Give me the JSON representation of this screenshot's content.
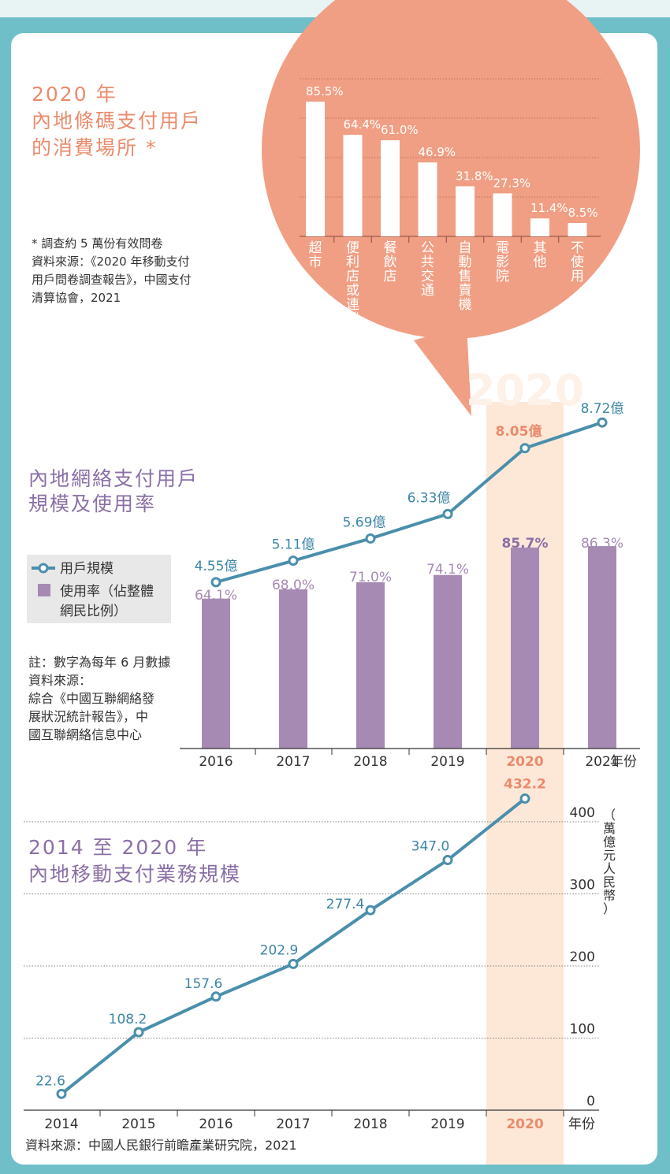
{
  "colors": {
    "frame": "#6fbfc9",
    "coral": "#f09f84",
    "orange_text": "#ea8b6c",
    "purple": "#a68ab4",
    "purple_text": "#8a6fa6",
    "teal_line": "#4a8fab",
    "teal_text": "#3d86a6",
    "highlight": "#fde8d8",
    "legend_bg": "#e8e8e8"
  },
  "section1": {
    "title_lines": [
      "2020 年",
      "內地條碼支付用戶",
      "的消費場所 *"
    ],
    "note_lines": [
      "* 調查約 5 萬份有效問卷",
      "資料來源：《2020 年移動支付",
      "用戶問卷調查報告》，中國支付",
      "清算協會，2021"
    ]
  },
  "section2": {
    "title_lines": [
      "內地網絡支付用戶",
      "規模及使用率"
    ],
    "legend_users": "用戶規模",
    "legend_rate_lines": [
      "使用率（佔整體",
      "網民比例）"
    ],
    "note_lines": [
      "註：數字為每年 6 月數據",
      "資料來源：",
      "綜合《中國互聯網絡發",
      "展狀況統計報告》，中",
      "國互聯網絡信息中心"
    ],
    "highlight_watermark": "2020",
    "x_unit": "年份"
  },
  "section3": {
    "title_lines": [
      "2014 至 2020 年",
      "內地移動支付業務規模"
    ],
    "y_unit": "（萬億元人民幣）",
    "x_unit": "年份",
    "source": "資料來源：中國人民銀行前瞻產業研究院，2021"
  },
  "chart_data": [
    {
      "type": "bar",
      "categories": [
        "超市",
        "便利店或連鎖店",
        "餐飲店",
        "公共交通",
        "自動售賣機",
        "電影院",
        "其他",
        "不使用"
      ],
      "values": [
        85.5,
        64.4,
        61.0,
        46.9,
        31.8,
        27.3,
        11.4,
        8.5
      ],
      "value_labels": [
        "85.5%",
        "64.4%",
        "61.0%",
        "46.9%",
        "31.8%",
        "27.3%",
        "11.4%",
        "8.5%"
      ],
      "title": "2020 年 內地條碼支付用戶的消費場所 *",
      "ylim": [
        0,
        100
      ],
      "grid": true
    },
    {
      "type": "bar",
      "categories": [
        "2016",
        "2017",
        "2018",
        "2019",
        "2020",
        "2021"
      ],
      "series": [
        {
          "name": "用戶規模",
          "type": "line",
          "values": [
            4.55,
            5.11,
            5.69,
            6.33,
            8.05,
            8.72
          ],
          "labels": [
            "4.55億",
            "5.11億",
            "5.69億",
            "6.33億",
            "8.05億",
            "8.72億"
          ]
        },
        {
          "name": "使用率（佔整體網民比例）",
          "type": "bar",
          "values": [
            64.1,
            68.0,
            71.0,
            74.1,
            85.7,
            86.3
          ],
          "labels": [
            "64.1%",
            "68.0%",
            "71.0%",
            "74.1%",
            "85.7%",
            "86.3%"
          ]
        }
      ],
      "title": "內地網絡支付用戶規模及使用率",
      "xlabel": "年份",
      "highlight": "2020"
    },
    {
      "type": "line",
      "x": [
        "2014",
        "2015",
        "2016",
        "2017",
        "2018",
        "2019",
        "2020"
      ],
      "values": [
        22.6,
        108.2,
        157.6,
        202.9,
        277.4,
        347.0,
        432.2
      ],
      "labels": [
        "22.6",
        "108.2",
        "157.6",
        "202.9",
        "277.4",
        "347.0",
        "432.2"
      ],
      "title": "2014 至 2020 年 內地移動支付業務規模",
      "xlabel": "年份",
      "ylabel": "（萬億元人民幣）",
      "yticks": [
        "0",
        "100",
        "200",
        "300",
        "400"
      ],
      "ylim": [
        0,
        450
      ],
      "grid": true,
      "highlight": "2020"
    }
  ]
}
